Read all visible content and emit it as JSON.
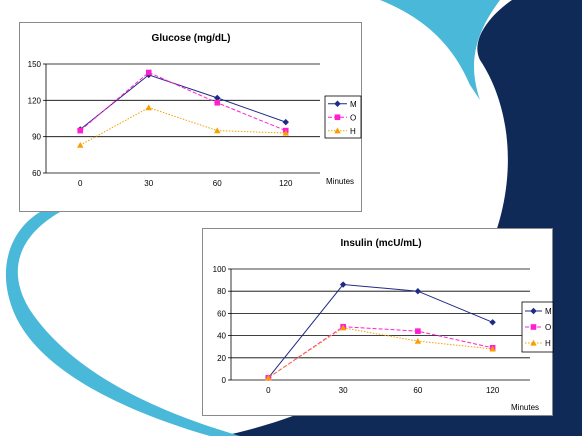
{
  "colors": {
    "background": "#ffffff",
    "swoosh_navy": "#0f2a56",
    "swoosh_cyan": "#4ab8d8",
    "series_M": "#1f2a86",
    "series_O": "#ff1fd0",
    "series_H": "#f5a000"
  },
  "chart_data": [
    {
      "type": "line",
      "title": "Glucose (mg/dL)",
      "xlabel": "Minutes",
      "ylabel": "",
      "categories": [
        "0",
        "30",
        "60",
        "120"
      ],
      "ylim": [
        60,
        150
      ],
      "yticks": [
        60,
        90,
        120,
        150
      ],
      "grid": true,
      "legend": "right",
      "series": [
        {
          "name": "M",
          "marker": "diamond",
          "line": "solid",
          "color": "#1f2a86",
          "values": [
            96,
            141,
            122,
            102
          ]
        },
        {
          "name": "O",
          "marker": "square",
          "line": "dashed",
          "color": "#ff1fd0",
          "values": [
            95,
            143,
            118,
            95
          ]
        },
        {
          "name": "H",
          "marker": "triangle",
          "line": "dotted",
          "color": "#f5a000",
          "values": [
            83,
            114,
            95,
            93
          ]
        }
      ]
    },
    {
      "type": "line",
      "title": "Insulin (mcU/mL)",
      "xlabel": "Minutes",
      "ylabel": "",
      "categories": [
        "0",
        "30",
        "60",
        "120"
      ],
      "ylim": [
        0,
        100
      ],
      "yticks": [
        0,
        20,
        40,
        60,
        80,
        100
      ],
      "grid": true,
      "legend": "right",
      "series": [
        {
          "name": "M",
          "marker": "diamond",
          "line": "solid",
          "color": "#1f2a86",
          "values": [
            2,
            86,
            80,
            52
          ]
        },
        {
          "name": "O",
          "marker": "square",
          "line": "dashed",
          "color": "#ff1fd0",
          "values": [
            2,
            48,
            44,
            29
          ]
        },
        {
          "name": "H",
          "marker": "triangle",
          "line": "dotted",
          "color": "#f5a000",
          "values": [
            2,
            47,
            35,
            28
          ]
        }
      ]
    }
  ]
}
